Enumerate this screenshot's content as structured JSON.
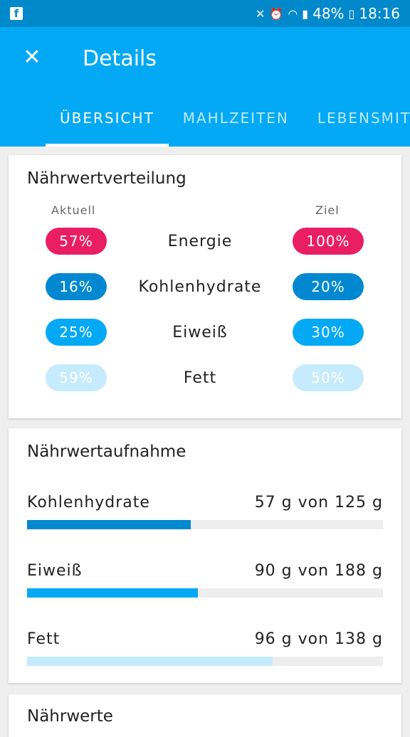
{
  "status": {
    "battery": "48%",
    "time": "18:16",
    "app_badge": "f"
  },
  "header": {
    "title": "Details",
    "tabs": [
      {
        "label": "ÜBERSICHT",
        "active": true
      },
      {
        "label": "MAHLZEITEN",
        "active": false
      },
      {
        "label": "LEBENSMIT",
        "active": false
      }
    ]
  },
  "distribution": {
    "title": "Nährwertverteilung",
    "current_label": "Aktuell",
    "goal_label": "Ziel",
    "rows": [
      {
        "name": "Energie",
        "current": "57%",
        "goal": "100%",
        "color": "#e91e63",
        "text_color": "#ffffff"
      },
      {
        "name": "Kohlenhydrate",
        "current": "16%",
        "goal": "20%",
        "color": "#0288d1",
        "text_color": "#ffffff"
      },
      {
        "name": "Eiweiß",
        "current": "25%",
        "goal": "30%",
        "color": "#03a9f4",
        "text_color": "#ffffff"
      },
      {
        "name": "Fett",
        "current": "59%",
        "goal": "50%",
        "color": "#c6ebfc",
        "text_color": "#ffffff"
      }
    ]
  },
  "intake": {
    "title": "Nährwertaufnahme",
    "items": [
      {
        "name": "Kohlenhydrate",
        "value": "57 g von 125 g",
        "fraction": 0.46,
        "color": "#0288d1"
      },
      {
        "name": "Eiweiß",
        "value": "90 g von 188 g",
        "fraction": 0.48,
        "color": "#03a9f4"
      },
      {
        "name": "Fett",
        "value": "96 g von 138 g",
        "fraction": 0.69,
        "color": "#c6ebfc"
      }
    ]
  },
  "nutrients": {
    "title": "Nährwerte"
  }
}
